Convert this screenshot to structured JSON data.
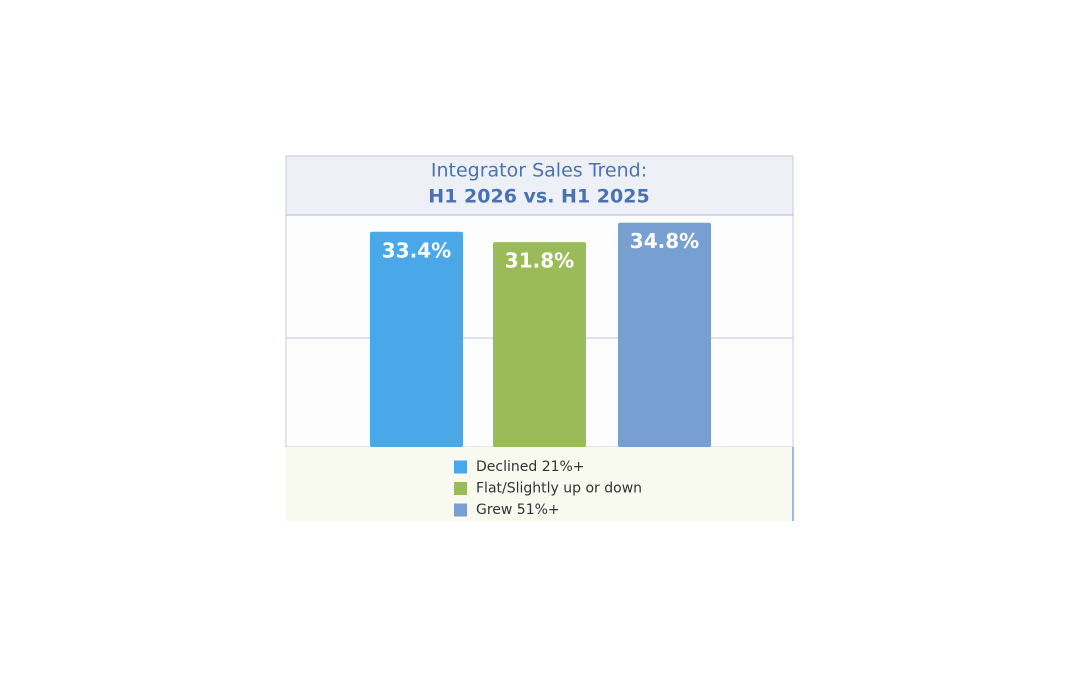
{
  "chart_data": {
    "type": "bar",
    "title": "Integrator Sales Trend:",
    "subtitle": "H1 2026 vs. H1 2025",
    "series": [
      {
        "name": "Declined 21%+",
        "color": "#4aa8e8",
        "values": [
          33.4
        ],
        "value_labels": [
          "33.4%"
        ]
      },
      {
        "name": "Flat/Slightly up or down",
        "color": "#9bbb59",
        "values": [
          31.8
        ],
        "value_labels": [
          "31.8%"
        ]
      },
      {
        "name": "Grew 51%+",
        "color": "#779fd2",
        "values": [
          34.8
        ],
        "value_labels": [
          "34.8%"
        ]
      }
    ],
    "ylim": [
      0,
      36
    ]
  }
}
